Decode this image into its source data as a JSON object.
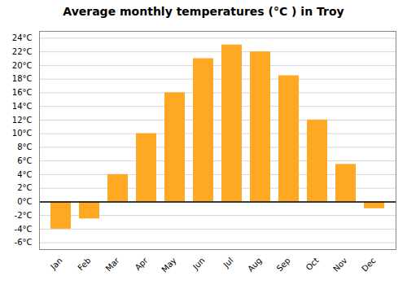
{
  "chart_data": {
    "type": "bar",
    "title": "Average monthly temperatures (°C ) in Troy",
    "categories": [
      "Jan",
      "Feb",
      "Mar",
      "Apr",
      "May",
      "Jun",
      "Jul",
      "Aug",
      "Sep",
      "Oct",
      "Nov",
      "Dec"
    ],
    "values": [
      -4,
      -2.5,
      4,
      10,
      16,
      21,
      23,
      22,
      18.5,
      12,
      5.5,
      -1
    ],
    "color": "#FFA824",
    "ylim": [
      -7,
      25
    ],
    "yticks": [
      {
        "value": -6,
        "label": "-6°C"
      },
      {
        "value": -4,
        "label": "-4°C"
      },
      {
        "value": -2,
        "label": "-2°C"
      },
      {
        "value": 0,
        "label": "0°C"
      },
      {
        "value": 2,
        "label": "2°C"
      },
      {
        "value": 4,
        "label": "4°C"
      },
      {
        "value": 6,
        "label": "6°C"
      },
      {
        "value": 8,
        "label": "8°C"
      },
      {
        "value": 10,
        "label": "10°C"
      },
      {
        "value": 12,
        "label": "12°C"
      },
      {
        "value": 14,
        "label": "14°C"
      },
      {
        "value": 16,
        "label": "16°C"
      },
      {
        "value": 18,
        "label": "18°C"
      },
      {
        "value": 20,
        "label": "20°C"
      },
      {
        "value": 22,
        "label": "22°C"
      },
      {
        "value": 24,
        "label": "24°C"
      }
    ],
    "grid": true
  }
}
